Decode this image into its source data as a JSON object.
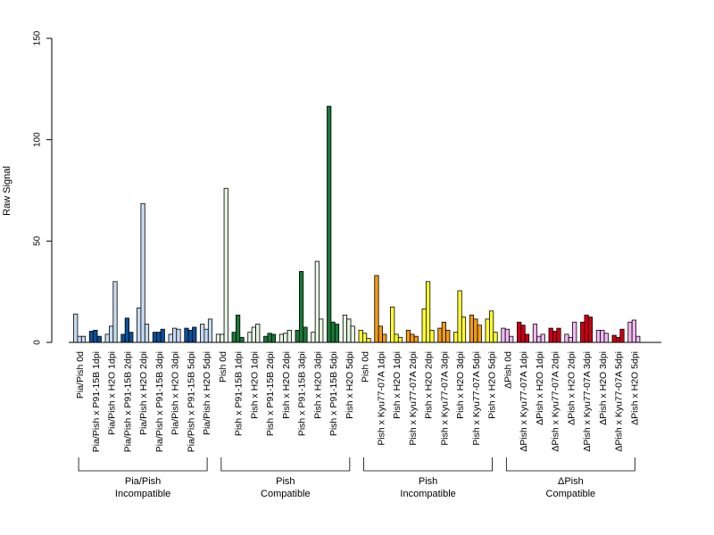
{
  "chart_data": {
    "type": "bar",
    "title": "",
    "xlabel": "",
    "ylabel": "Raw Signal",
    "ylim": [
      0,
      150
    ],
    "yticks": [
      "0",
      "50",
      "100",
      "150"
    ],
    "grid": false,
    "legend": "none",
    "categories": [
      {
        "label": "Pia/Pish 0d",
        "values": [
          14,
          3,
          3
        ],
        "colors": [
          "#c6dbef",
          "#c6dbef",
          "#c6dbef"
        ]
      },
      {
        "label": "Pia/Pish x P91-15B 1dpi",
        "values": [
          5.5,
          6,
          3
        ],
        "colors": [
          "#08519c",
          "#08519c",
          "#08519c"
        ]
      },
      {
        "label": "Pia/Pish x H2O 1dpi",
        "values": [
          4,
          8,
          30
        ],
        "colors": [
          "#c6dbef",
          "#c6dbef",
          "#c6dbef"
        ]
      },
      {
        "label": "Pia/Pish x P91-15B 2dpi",
        "values": [
          4,
          12,
          5
        ],
        "colors": [
          "#08519c",
          "#08519c",
          "#08519c"
        ]
      },
      {
        "label": "Pia/Pish x H2O 2dpi",
        "values": [
          17,
          68.5,
          9
        ],
        "colors": [
          "#c6dbef",
          "#c6dbef",
          "#c6dbef"
        ]
      },
      {
        "label": "Pia/Pish x P91-15B 3dpi",
        "values": [
          5,
          5,
          6.5
        ],
        "colors": [
          "#08519c",
          "#08519c",
          "#08519c"
        ]
      },
      {
        "label": "Pia/Pish x H2O 3dpi",
        "values": [
          4,
          7,
          6.5
        ],
        "colors": [
          "#c6dbef",
          "#c6dbef",
          "#c6dbef"
        ]
      },
      {
        "label": "Pia/Pish x P91-15B 5dpi",
        "values": [
          7,
          6,
          7.5
        ],
        "colors": [
          "#08519c",
          "#08519c",
          "#08519c"
        ]
      },
      {
        "label": "Pia/Pish x H2O 5dpi",
        "values": [
          9,
          6.5,
          11.5
        ],
        "colors": [
          "#c6dbef",
          "#c6dbef",
          "#c6dbef"
        ]
      },
      {
        "label": "Pish 0d",
        "values": [
          4,
          4,
          76
        ],
        "colors": [
          "#e5f5e0",
          "#e5f5e0",
          "#e5f5e0"
        ]
      },
      {
        "label": "Pish x P91-15B 1dpi",
        "values": [
          5,
          13.5,
          2.5
        ],
        "colors": [
          "#1b7837",
          "#1b7837",
          "#1b7837"
        ]
      },
      {
        "label": "Pish x H2O 1dpi",
        "values": [
          5,
          7.5,
          9
        ],
        "colors": [
          "#e5f5e0",
          "#e5f5e0",
          "#e5f5e0"
        ]
      },
      {
        "label": "Pish x P91-15B 2dpi",
        "values": [
          3,
          4.5,
          4
        ],
        "colors": [
          "#1b7837",
          "#1b7837",
          "#1b7837"
        ]
      },
      {
        "label": "Pish x H2O 2dpi",
        "values": [
          4,
          4.5,
          6
        ],
        "colors": [
          "#e5f5e0",
          "#e5f5e0",
          "#e5f5e0"
        ]
      },
      {
        "label": "Pish x P91-15B 3dpi",
        "values": [
          6,
          35,
          7.5
        ],
        "colors": [
          "#1b7837",
          "#1b7837",
          "#1b7837"
        ]
      },
      {
        "label": "Pish x H2O 3dpi",
        "values": [
          5,
          40,
          11.5
        ],
        "colors": [
          "#e5f5e0",
          "#e5f5e0",
          "#e5f5e0"
        ]
      },
      {
        "label": "Pish x P91-15B 5dpi",
        "values": [
          116.5,
          10,
          9
        ],
        "colors": [
          "#1b7837",
          "#1b7837",
          "#1b7837"
        ]
      },
      {
        "label": "Pish x H2O 5dpi",
        "values": [
          13.5,
          11.5,
          8
        ],
        "colors": [
          "#e5f5e0",
          "#e5f5e0",
          "#e5f5e0"
        ]
      },
      {
        "label": "Pish 0d",
        "values": [
          6,
          4.5,
          2
        ],
        "colors": [
          "#ffff33",
          "#ffff33",
          "#ffff33"
        ]
      },
      {
        "label": "Pish x Kyu77-07A 1dpi",
        "values": [
          33,
          8,
          4
        ],
        "colors": [
          "#f39c12",
          "#f39c12",
          "#f39c12"
        ]
      },
      {
        "label": "Pish x H2O 1dpi",
        "values": [
          17.5,
          4,
          2.5
        ],
        "colors": [
          "#ffff33",
          "#ffff33",
          "#ffff33"
        ]
      },
      {
        "label": "Pish x Kyu77-07A 2dpi",
        "values": [
          6,
          4,
          3
        ],
        "colors": [
          "#f39c12",
          "#f39c12",
          "#f39c12"
        ]
      },
      {
        "label": "Pish x H2O 2dpi",
        "values": [
          16.5,
          30,
          6
        ],
        "colors": [
          "#ffff33",
          "#ffff33",
          "#ffff33"
        ]
      },
      {
        "label": "Pish x Kyu77-07A 3dpi",
        "values": [
          7,
          10,
          6
        ],
        "colors": [
          "#f39c12",
          "#f39c12",
          "#f39c12"
        ]
      },
      {
        "label": "Pish x H2O 3dpi",
        "values": [
          5,
          25.5,
          12.5
        ],
        "colors": [
          "#ffff33",
          "#ffff33",
          "#ffff33"
        ]
      },
      {
        "label": "Pish x Kyu77-07A 5dpi",
        "values": [
          13.5,
          11.5,
          8.5
        ],
        "colors": [
          "#f39c12",
          "#f39c12",
          "#f39c12"
        ]
      },
      {
        "label": "Pish x H2O 5dpi",
        "values": [
          11.5,
          15.5,
          5
        ],
        "colors": [
          "#ffff33",
          "#ffff33",
          "#ffff33"
        ]
      },
      {
        "label": "ΔPish 0d",
        "values": [
          7,
          6.5,
          3
        ],
        "colors": [
          "#f2b8f2",
          "#f2b8f2",
          "#f2b8f2"
        ]
      },
      {
        "label": "ΔPish x Kyu77-07A 1dpi",
        "values": [
          10,
          8.5,
          4
        ],
        "colors": [
          "#cc0016",
          "#cc0016",
          "#cc0016"
        ]
      },
      {
        "label": "ΔPish x H2O 1dpi",
        "values": [
          9,
          3,
          4
        ],
        "colors": [
          "#f2b8f2",
          "#f2b8f2",
          "#f2b8f2"
        ]
      },
      {
        "label": "ΔPish x Kyu77-07A 2dpi",
        "values": [
          7,
          5.5,
          7
        ],
        "colors": [
          "#cc0016",
          "#cc0016",
          "#cc0016"
        ]
      },
      {
        "label": "ΔPish x H2O 2dpi",
        "values": [
          4,
          2.5,
          10
        ],
        "colors": [
          "#f2b8f2",
          "#f2b8f2",
          "#f2b8f2"
        ]
      },
      {
        "label": "ΔPish x Kyu77-07A 3dpi",
        "values": [
          10,
          13.5,
          12.5
        ],
        "colors": [
          "#cc0016",
          "#cc0016",
          "#cc0016"
        ]
      },
      {
        "label": "ΔPish x H2O 3dpi",
        "values": [
          6,
          6,
          4.5
        ],
        "colors": [
          "#f2b8f2",
          "#f2b8f2",
          "#f2b8f2"
        ]
      },
      {
        "label": "ΔPish x Kyu77-07A 5dpi",
        "values": [
          3.5,
          2.5,
          6.5
        ],
        "colors": [
          "#cc0016",
          "#cc0016",
          "#cc0016"
        ]
      },
      {
        "label": "ΔPish x H2O 5dpi",
        "values": [
          10,
          11,
          3
        ],
        "colors": [
          "#f2b8f2",
          "#f2b8f2",
          "#f2b8f2"
        ]
      }
    ],
    "groups": [
      {
        "lines": [
          "Pia/Pish",
          "Incompatible"
        ]
      },
      {
        "lines": [
          "Pish",
          "Compatible"
        ]
      },
      {
        "lines": [
          "Pish",
          "Incompatible"
        ]
      },
      {
        "lines": [
          "ΔPish",
          "Compatible"
        ]
      }
    ]
  }
}
